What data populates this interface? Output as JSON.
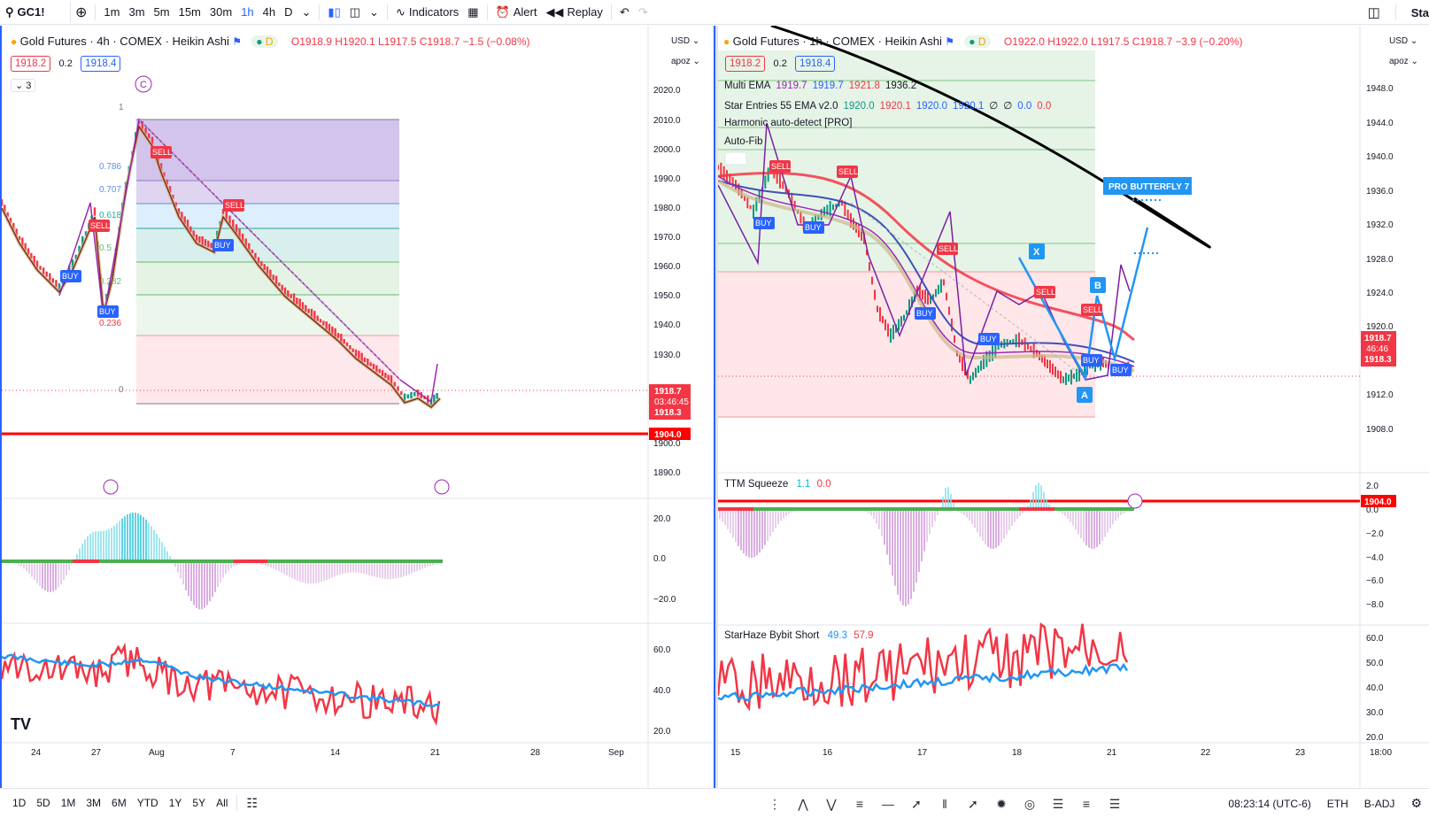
{
  "toolbar": {
    "symbol": "GC1!",
    "intervals": [
      "1m",
      "3m",
      "5m",
      "15m",
      "30m",
      "1h",
      "4h",
      "D"
    ],
    "active_interval": "1h",
    "indicators_label": "Indicators",
    "alert_label": "Alert",
    "replay_label": "Replay",
    "right_label": "Sta"
  },
  "left_chart": {
    "title": "Gold Futures · 4h · COMEX · Heikin Ashi",
    "badge": "D",
    "o": "O1918.9",
    "h": "H1920.1",
    "l": "L1917.5",
    "c": "C1918.7",
    "chg": "−1.5 (−0.08%)",
    "bid": "1918.2",
    "spread": "0.2",
    "ask": "1918.4",
    "collapse_count": "3",
    "currency": "USD",
    "scale_mode": "apoz",
    "price_axis": [
      "2020.0",
      "2010.0",
      "2000.0",
      "1990.0",
      "1980.0",
      "1970.0",
      "1960.0",
      "1950.0",
      "1940.0",
      "1930.0",
      "1900.0",
      "1890.0"
    ],
    "osc_axis": [
      "20.0",
      "0.0",
      "−20.0"
    ],
    "rsi_axis": [
      "60.0",
      "40.0",
      "20.0"
    ],
    "time_axis": [
      "24",
      "27",
      "Aug",
      "7",
      "14",
      "21",
      "28",
      "Sep"
    ],
    "last_price": "1918.7",
    "countdown": "03:46:45",
    "last_price2": "1918.3",
    "support": "1904.0",
    "fib_labels": [
      "1",
      "0.786",
      "0.707",
      "0.618",
      "0.5",
      "0.382",
      "0.236",
      "0"
    ],
    "signals": [
      "SELL",
      "SELL",
      "SELL",
      "BUY",
      "BUY",
      "BUY"
    ],
    "c_label": "C",
    "tv_logo": "TV"
  },
  "right_chart": {
    "title": "Gold Futures · 1h · COMEX · Heikin Ashi",
    "badge": "D",
    "o": "O1922.0",
    "h": "H1922.0",
    "l": "L1917.5",
    "c": "C1918.7",
    "chg": "−3.9 (−0.20%)",
    "bid": "1918.2",
    "spread": "0.2",
    "ask": "1918.4",
    "currency": "USD",
    "scale_mode": "apoz",
    "indicators": [
      {
        "name": "Multi EMA",
        "values": [
          "1919.7",
          "1919.7",
          "1921.8",
          "1936.2"
        ],
        "colors": [
          "#9c27b0",
          "#2962ff",
          "#f23645",
          "#131722"
        ]
      },
      {
        "name": "Star Entries 55 EMA v2.0",
        "values": [
          "1920.0",
          "1920.1",
          "1920.0",
          "1920.1",
          "∅",
          "∅",
          "0.0",
          "0.0"
        ],
        "colors": [
          "#089981",
          "#f23645",
          "#2962ff",
          "#2962ff",
          "#131722",
          "#131722",
          "#2962ff",
          "#f23645"
        ]
      },
      {
        "name": "Harmonic auto-detect [PRO]",
        "values": [],
        "colors": []
      },
      {
        "name": "Auto-Fib",
        "values": [],
        "colors": []
      }
    ],
    "price_axis": [
      "1948.0",
      "1944.0",
      "1940.0",
      "1936.0",
      "1932.0",
      "1928.0",
      "1924.0",
      "1920.0",
      "1912.0",
      "1908.0"
    ],
    "osc_axis": [
      "2.0",
      "0.0",
      "−2.0",
      "−4.0",
      "−6.0",
      "−8.0"
    ],
    "rsi_axis": [
      "60.0",
      "50.0",
      "40.0",
      "30.0",
      "20.0"
    ],
    "time_axis": [
      "15",
      "16",
      "17",
      "18",
      "21",
      "22",
      "23",
      "18:00"
    ],
    "last_price": "1918.7",
    "countdown": "46:46",
    "last_price2": "1918.3",
    "support": "1904.0",
    "squeeze": {
      "name": "TTM Squeeze",
      "v1": "1.1",
      "v2": "0.0"
    },
    "starhaze": {
      "name": "StarHaze Bybit Short",
      "v1": "49.3",
      "v2": "57.9"
    },
    "harmonic_label": "PRO BUTTERFLY 7",
    "points": [
      "X",
      "A",
      "B"
    ],
    "signals": [
      "SELL",
      "SELL",
      "SELL",
      "SELL",
      "SELL",
      "BUY",
      "BUY",
      "BUY",
      "BUY",
      "BUY",
      "BUY"
    ]
  },
  "bottombar": {
    "ranges": [
      "1D",
      "5D",
      "1M",
      "3M",
      "6M",
      "YTD",
      "1Y",
      "5Y",
      "All"
    ],
    "time": "08:23:14 (UTC-6)",
    "session": "ETH",
    "adj": "B-ADJ"
  },
  "colors": {
    "accent": "#2962ff",
    "up": "#089981",
    "down": "#f23645",
    "support": "#ff0000"
  }
}
